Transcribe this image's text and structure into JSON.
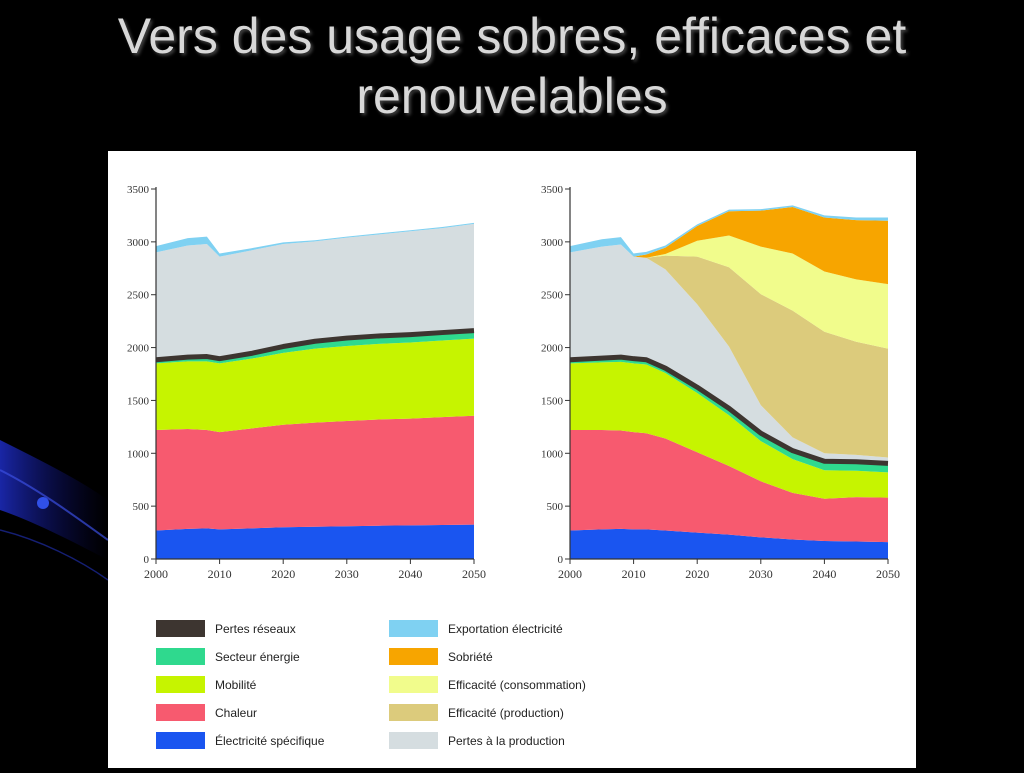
{
  "slide": {
    "title_line1": "Vers des usage sobres, efficaces et",
    "title_line2": "renouvelables"
  },
  "colors": {
    "pertes_reseaux": "#3d3530",
    "secteur_energie": "#2fd98e",
    "mobilite": "#c6f400",
    "chaleur": "#f75a6f",
    "electricite_specifique": "#1a55f0",
    "exportation_electricite": "#7fd1f2",
    "sobriete": "#f7a500",
    "efficacite_consommation": "#f1fc8c",
    "efficacite_production": "#dccb7c",
    "pertes_production": "#d5dde0"
  },
  "legend": {
    "items": [
      {
        "key": "pertes_reseaux",
        "label": "Pertes réseaux"
      },
      {
        "key": "secteur_energie",
        "label": "Secteur énergie"
      },
      {
        "key": "mobilite",
        "label": "Mobilité"
      },
      {
        "key": "chaleur",
        "label": "Chaleur"
      },
      {
        "key": "electricite_specifique",
        "label": "Électricité spécifique"
      },
      {
        "key": "exportation_electricite",
        "label": "Exportation électricité"
      },
      {
        "key": "sobriete",
        "label": "Sobriété"
      },
      {
        "key": "efficacite_consommation",
        "label": "Efficacité (consommation)"
      },
      {
        "key": "efficacite_production",
        "label": "Efficacité (production)"
      },
      {
        "key": "pertes_production",
        "label": "Pertes à la production"
      }
    ]
  },
  "chart_data": [
    {
      "type": "area",
      "stacked": true,
      "x": [
        2000,
        2005,
        2008,
        2010,
        2015,
        2020,
        2025,
        2030,
        2035,
        2040,
        2045,
        2050
      ],
      "x_ticks": [
        "2000",
        "2010",
        "2020",
        "2030",
        "2040",
        "2050"
      ],
      "y_ticks": [
        "0",
        "500",
        "1000",
        "1500",
        "2000",
        "2500",
        "3000",
        "3500"
      ],
      "xlim": [
        2000,
        2050
      ],
      "ylim": [
        0,
        3500
      ],
      "legend_position": "bottom",
      "series": [
        {
          "key": "electricite_specifique",
          "values": [
            270,
            285,
            290,
            280,
            290,
            300,
            305,
            310,
            315,
            318,
            322,
            325
          ]
        },
        {
          "key": "chaleur",
          "values": [
            950,
            945,
            930,
            920,
            945,
            970,
            985,
            995,
            1005,
            1010,
            1020,
            1030
          ]
        },
        {
          "key": "mobilite",
          "values": [
            630,
            640,
            650,
            650,
            660,
            680,
            700,
            710,
            715,
            720,
            725,
            730
          ]
        },
        {
          "key": "secteur_energie",
          "values": [
            20,
            25,
            30,
            30,
            35,
            45,
            55,
            60,
            60,
            60,
            60,
            60
          ]
        },
        {
          "key": "pertes_reseaux",
          "values": [
            30,
            30,
            30,
            30,
            30,
            30,
            30,
            30,
            30,
            30,
            30,
            30
          ]
        },
        {
          "key": "pertes_production",
          "values": [
            1000,
            1040,
            1050,
            950,
            960,
            955,
            930,
            935,
            945,
            962,
            973,
            995
          ]
        },
        {
          "key": "exportation_electricite",
          "values": [
            60,
            70,
            70,
            30,
            20,
            15,
            10,
            10,
            10,
            10,
            10,
            10
          ]
        }
      ]
    },
    {
      "type": "area",
      "stacked": true,
      "x": [
        2000,
        2005,
        2008,
        2010,
        2012,
        2015,
        2020,
        2025,
        2030,
        2035,
        2040,
        2045,
        2050
      ],
      "x_ticks": [
        "2000",
        "2010",
        "2020",
        "2030",
        "2040",
        "2050"
      ],
      "y_ticks": [
        "0",
        "500",
        "1000",
        "1500",
        "2000",
        "2500",
        "3000",
        "3500"
      ],
      "xlim": [
        2000,
        2050
      ],
      "ylim": [
        0,
        3500
      ],
      "legend_position": "bottom",
      "series": [
        {
          "key": "electricite_specifique",
          "values": [
            270,
            280,
            285,
            280,
            280,
            270,
            250,
            230,
            205,
            185,
            170,
            165,
            160
          ]
        },
        {
          "key": "chaleur",
          "values": [
            950,
            940,
            930,
            920,
            910,
            870,
            760,
            650,
            530,
            440,
            400,
            420,
            420
          ]
        },
        {
          "key": "mobilite",
          "values": [
            630,
            640,
            650,
            650,
            650,
            620,
            560,
            480,
            380,
            320,
            270,
            250,
            240
          ]
        },
        {
          "key": "secteur_energie",
          "values": [
            20,
            25,
            30,
            30,
            30,
            30,
            40,
            50,
            60,
            65,
            70,
            70,
            70
          ]
        },
        {
          "key": "pertes_reseaux",
          "values": [
            30,
            30,
            30,
            30,
            30,
            30,
            30,
            30,
            30,
            30,
            30,
            30,
            30
          ]
        },
        {
          "key": "pertes_production",
          "values": [
            1000,
            1040,
            1050,
            950,
            950,
            920,
            770,
            570,
            250,
            110,
            60,
            50,
            40
          ]
        },
        {
          "key": "efficacite_production",
          "values": [
            0,
            0,
            0,
            0,
            0,
            130,
            450,
            750,
            1050,
            1200,
            1150,
            1070,
            1030
          ]
        },
        {
          "key": "efficacite_consommation",
          "values": [
            0,
            0,
            0,
            0,
            0,
            15,
            150,
            300,
            450,
            540,
            570,
            590,
            610
          ]
        },
        {
          "key": "sobriete",
          "values": [
            0,
            0,
            0,
            0,
            30,
            60,
            140,
            230,
            340,
            440,
            510,
            560,
            600
          ]
        },
        {
          "key": "exportation_electricite",
          "values": [
            60,
            70,
            70,
            30,
            25,
            20,
            15,
            15,
            15,
            15,
            20,
            25,
            30
          ]
        }
      ]
    }
  ]
}
